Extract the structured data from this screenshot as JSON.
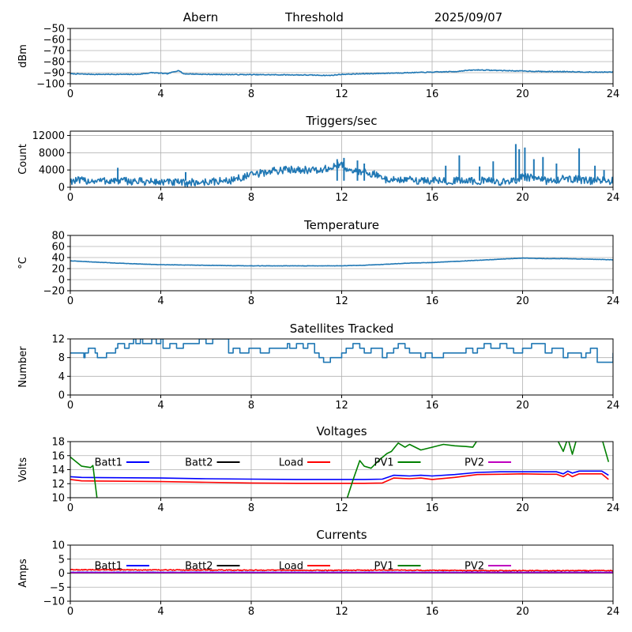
{
  "header": {
    "station": "Abern",
    "mode": "Threshold",
    "date": "2025/09/07"
  },
  "colors": {
    "series": "#1f77b4",
    "grid": "#b0b0b0",
    "batt1": "#0000ff",
    "batt2": "#000000",
    "load": "#ff0000",
    "pv1": "#008000",
    "pv2": "#bf00bf"
  },
  "chart_data": [
    {
      "id": "dbm",
      "type": "line",
      "title": "",
      "xlabel": "",
      "ylabel": "dBm",
      "xlim": [
        0,
        24
      ],
      "ylim": [
        -100,
        -50
      ],
      "xticks": [
        0,
        4,
        8,
        12,
        16,
        20,
        24
      ],
      "yticks": [
        -100,
        -90,
        -80,
        -70,
        -60,
        -50
      ],
      "grid": true,
      "legend": [],
      "series": [
        {
          "name": "",
          "color": "#1f77b4",
          "noise": 0.35,
          "x": [
            0,
            1,
            2,
            3,
            3.6,
            4,
            4.3,
            4.6,
            4.8,
            5,
            6,
            8,
            10,
            11,
            11.5,
            12,
            13,
            14,
            15,
            16,
            17,
            17.5,
            18,
            19,
            20,
            21,
            22,
            23,
            24
          ],
          "y": [
            -91,
            -91.5,
            -91.5,
            -91.5,
            -90,
            -90.5,
            -91,
            -89,
            -88,
            -91,
            -91.5,
            -91.8,
            -92,
            -92.3,
            -92.5,
            -91.5,
            -91,
            -90.5,
            -90,
            -89.5,
            -89,
            -88,
            -87.5,
            -88,
            -88.5,
            -89,
            -89,
            -89.5,
            -89.5
          ]
        }
      ]
    },
    {
      "id": "triggers",
      "type": "line",
      "title": "Triggers/sec",
      "xlabel": "",
      "ylabel": "Count",
      "xlim": [
        0,
        24
      ],
      "ylim": [
        0,
        13000
      ],
      "xticks": [
        0,
        4,
        8,
        12,
        16,
        20,
        24
      ],
      "yticks": [
        0,
        4000,
        8000,
        12000
      ],
      "grid": true,
      "legend": [],
      "series": [
        {
          "name": "",
          "color": "#1f77b4",
          "noise": 900,
          "x": [
            0,
            2,
            4,
            5,
            6,
            7,
            8,
            9,
            10,
            11,
            11.5,
            12,
            12.5,
            13,
            14,
            16,
            18,
            19.5,
            20,
            21,
            22,
            23,
            24
          ],
          "y": [
            1500,
            1500,
            1200,
            1000,
            1200,
            1500,
            2800,
            3800,
            4200,
            3800,
            4500,
            5200,
            3500,
            3800,
            1800,
            1500,
            1500,
            1200,
            2500,
            1500,
            2000,
            1500,
            1500
          ]
        },
        {
          "name": "",
          "color": "#1f77b4",
          "type": "spikes",
          "x": [
            2.1,
            5.1,
            11.8,
            12.1,
            12.7,
            13.0,
            16.6,
            17.2,
            18.1,
            18.7,
            19.7,
            19.85,
            20.1,
            20.5,
            20.9,
            21.5,
            22.5,
            23.2,
            23.6
          ],
          "y": [
            4500,
            3500,
            6500,
            6800,
            6200,
            5500,
            5000,
            7400,
            4800,
            6000,
            10000,
            8800,
            9200,
            6500,
            7000,
            5500,
            9000,
            5000,
            4000
          ]
        }
      ]
    },
    {
      "id": "temperature",
      "type": "line",
      "title": "Temperature",
      "xlabel": "",
      "ylabel": "°C",
      "xlim": [
        0,
        24
      ],
      "ylim": [
        -20,
        80
      ],
      "xticks": [
        0,
        4,
        8,
        12,
        16,
        20,
        24
      ],
      "yticks": [
        -20,
        0,
        20,
        40,
        60,
        80
      ],
      "grid": true,
      "legend": [],
      "series": [
        {
          "name": "",
          "color": "#1f77b4",
          "noise": 0.3,
          "x": [
            0,
            2,
            4,
            6,
            8,
            10,
            12,
            13,
            14,
            15,
            16,
            17,
            18,
            19,
            20,
            21,
            22,
            23,
            24
          ],
          "y": [
            34,
            30,
            27,
            26,
            25,
            25,
            25,
            26,
            28,
            30,
            31,
            33,
            35,
            37,
            39,
            38,
            38,
            37,
            36
          ]
        }
      ]
    },
    {
      "id": "satellites",
      "type": "line",
      "title": "Satellites Tracked",
      "xlabel": "",
      "ylabel": "Number",
      "xlim": [
        0,
        24
      ],
      "ylim": [
        0,
        12
      ],
      "xticks": [
        0,
        4,
        8,
        12,
        16,
        20,
        24
      ],
      "yticks": [
        0,
        4,
        8,
        12
      ],
      "grid": true,
      "legend": [],
      "series": [
        {
          "name": "",
          "color": "#1f77b4",
          "step": true,
          "x": [
            0,
            0.6,
            0.65,
            0.8,
            1.1,
            1.2,
            1.6,
            1.8,
            2.0,
            2.1,
            2.4,
            2.6,
            2.8,
            2.9,
            3.1,
            3.2,
            3.6,
            3.8,
            4.0,
            4.1,
            4.4,
            4.7,
            5.0,
            5.5,
            5.7,
            6.0,
            6.3,
            7.0,
            7.2,
            7.5,
            7.9,
            8.4,
            8.8,
            9.2,
            9.6,
            9.7,
            10.0,
            10.3,
            10.5,
            10.8,
            11.0,
            11.2,
            11.5,
            12.0,
            12.2,
            12.5,
            12.8,
            13.0,
            13.3,
            13.8,
            14.0,
            14.3,
            14.5,
            14.8,
            15.0,
            15.5,
            15.7,
            16.0,
            16.5,
            17.0,
            17.5,
            17.8,
            18.0,
            18.3,
            18.6,
            19.0,
            19.3,
            19.6,
            20.0,
            20.4,
            21.0,
            21.3,
            21.8,
            22.0,
            22.6,
            22.8,
            23.0,
            23.3,
            24
          ],
          "y": [
            9,
            8,
            9,
            10,
            9,
            8,
            9,
            9,
            10,
            11,
            10,
            11,
            12,
            11,
            12,
            11,
            12,
            11,
            12,
            10,
            11,
            10,
            11,
            11,
            12,
            11,
            12,
            9,
            10,
            9,
            10,
            9,
            10,
            10,
            11,
            10,
            11,
            10,
            11,
            9,
            8,
            7,
            8,
            9,
            10,
            11,
            10,
            9,
            10,
            8,
            9,
            10,
            11,
            10,
            9,
            8,
            9,
            8,
            9,
            9,
            10,
            9,
            10,
            11,
            10,
            11,
            10,
            9,
            10,
            11,
            9,
            10,
            8,
            9,
            8,
            9,
            10,
            7,
            9
          ]
        }
      ]
    },
    {
      "id": "voltages",
      "type": "line",
      "title": "Voltages",
      "xlabel": "",
      "ylabel": "Volts",
      "xlim": [
        0,
        24
      ],
      "ylim": [
        10,
        18
      ],
      "xticks": [
        0,
        4,
        8,
        12,
        16,
        20,
        24
      ],
      "yticks": [
        10,
        12,
        14,
        16,
        18
      ],
      "grid": true,
      "legend": [
        {
          "name": "Batt1",
          "color": "#0000ff"
        },
        {
          "name": "Batt2",
          "color": "#000000"
        },
        {
          "name": "Load",
          "color": "#ff0000"
        },
        {
          "name": "PV1",
          "color": "#008000"
        },
        {
          "name": "PV2",
          "color": "#bf00bf"
        }
      ],
      "series": [
        {
          "name": "Batt1",
          "color": "#0000ff",
          "x": [
            0,
            0.5,
            2,
            4,
            6,
            8,
            10,
            12,
            13,
            13.8,
            14.3,
            15,
            15.5,
            16,
            17,
            18,
            19,
            20,
            21,
            21.5,
            21.8,
            22.0,
            22.2,
            22.5,
            23,
            23.5,
            23.8
          ],
          "y": [
            13.0,
            12.9,
            12.85,
            12.8,
            12.7,
            12.65,
            12.6,
            12.6,
            12.6,
            12.65,
            13.2,
            13.1,
            13.2,
            13.1,
            13.3,
            13.6,
            13.7,
            13.7,
            13.7,
            13.7,
            13.4,
            13.8,
            13.5,
            13.8,
            13.8,
            13.8,
            13.2
          ]
        },
        {
          "name": "Load",
          "color": "#ff0000",
          "x": [
            0,
            0.5,
            2,
            4,
            6,
            8,
            10,
            12,
            13,
            13.8,
            14.3,
            15,
            15.5,
            16,
            17,
            18,
            19,
            20,
            21,
            21.5,
            21.8,
            22.0,
            22.2,
            22.5,
            23,
            23.5,
            23.8
          ],
          "y": [
            12.6,
            12.4,
            12.35,
            12.3,
            12.2,
            12.1,
            12.05,
            12.05,
            12.05,
            12.1,
            12.8,
            12.7,
            12.8,
            12.6,
            12.9,
            13.3,
            13.35,
            13.4,
            13.35,
            13.35,
            13.0,
            13.4,
            13.0,
            13.4,
            13.4,
            13.4,
            12.6
          ]
        },
        {
          "name": "PV1",
          "color": "#008000",
          "x": [
            0,
            0.5,
            0.9,
            1.0,
            1.1,
            1.2
          ],
          "y": [
            15.8,
            14.5,
            14.3,
            14.6,
            12,
            9.5
          ]
        },
        {
          "name": "PV1",
          "color": "#008000",
          "x": [
            12.2,
            12.5,
            12.8,
            13.0,
            13.3,
            13.7,
            14.0,
            14.2,
            14.5,
            14.8,
            15.0,
            15.5,
            16.0,
            16.5,
            17.0,
            17.5,
            17.8,
            18.0
          ],
          "y": [
            9.5,
            12.5,
            15.3,
            14.5,
            14.2,
            15.5,
            16.3,
            16.6,
            17.8,
            17.2,
            17.6,
            16.8,
            17.2,
            17.6,
            17.4,
            17.3,
            17.2,
            18.2
          ]
        },
        {
          "name": "PV1",
          "color": "#008000",
          "x": [
            21.5,
            21.8,
            22.0,
            22.2,
            22.4,
            22.5,
            23.0,
            23.5,
            23.8
          ],
          "y": [
            18.5,
            16.6,
            18.5,
            16.2,
            18.5,
            18.5,
            18.5,
            18.5,
            15.1
          ]
        }
      ]
    },
    {
      "id": "currents",
      "type": "line",
      "title": "Currents",
      "xlabel": "",
      "ylabel": "Amps",
      "xlim": [
        0,
        24
      ],
      "ylim": [
        -10,
        10
      ],
      "xticks": [
        0,
        4,
        8,
        12,
        16,
        20,
        24
      ],
      "yticks": [
        -10,
        -5,
        0,
        5,
        10
      ],
      "grid": true,
      "legend": [
        {
          "name": "Batt1",
          "color": "#0000ff"
        },
        {
          "name": "Batt2",
          "color": "#000000"
        },
        {
          "name": "Load",
          "color": "#ff0000"
        },
        {
          "name": "PV1",
          "color": "#008000"
        },
        {
          "name": "PV2",
          "color": "#bf00bf"
        }
      ],
      "series": [
        {
          "name": "Load",
          "color": "#ff0000",
          "noise": 0.15,
          "x": [
            0,
            6,
            12,
            14,
            18,
            24
          ],
          "y": [
            1.2,
            1.1,
            1.0,
            1.1,
            0.9,
            0.9
          ]
        },
        {
          "name": "Batt1",
          "color": "#0000ff",
          "noise": 0.05,
          "x": [
            0,
            24
          ],
          "y": [
            0.3,
            0.3
          ]
        },
        {
          "name": "PV1",
          "color": "#008000",
          "x": [
            0,
            24
          ],
          "y": [
            0.05,
            0.05
          ]
        },
        {
          "name": "PV2",
          "color": "#bf00bf",
          "x": [
            0,
            24
          ],
          "y": [
            0.15,
            0.15
          ]
        }
      ]
    }
  ]
}
